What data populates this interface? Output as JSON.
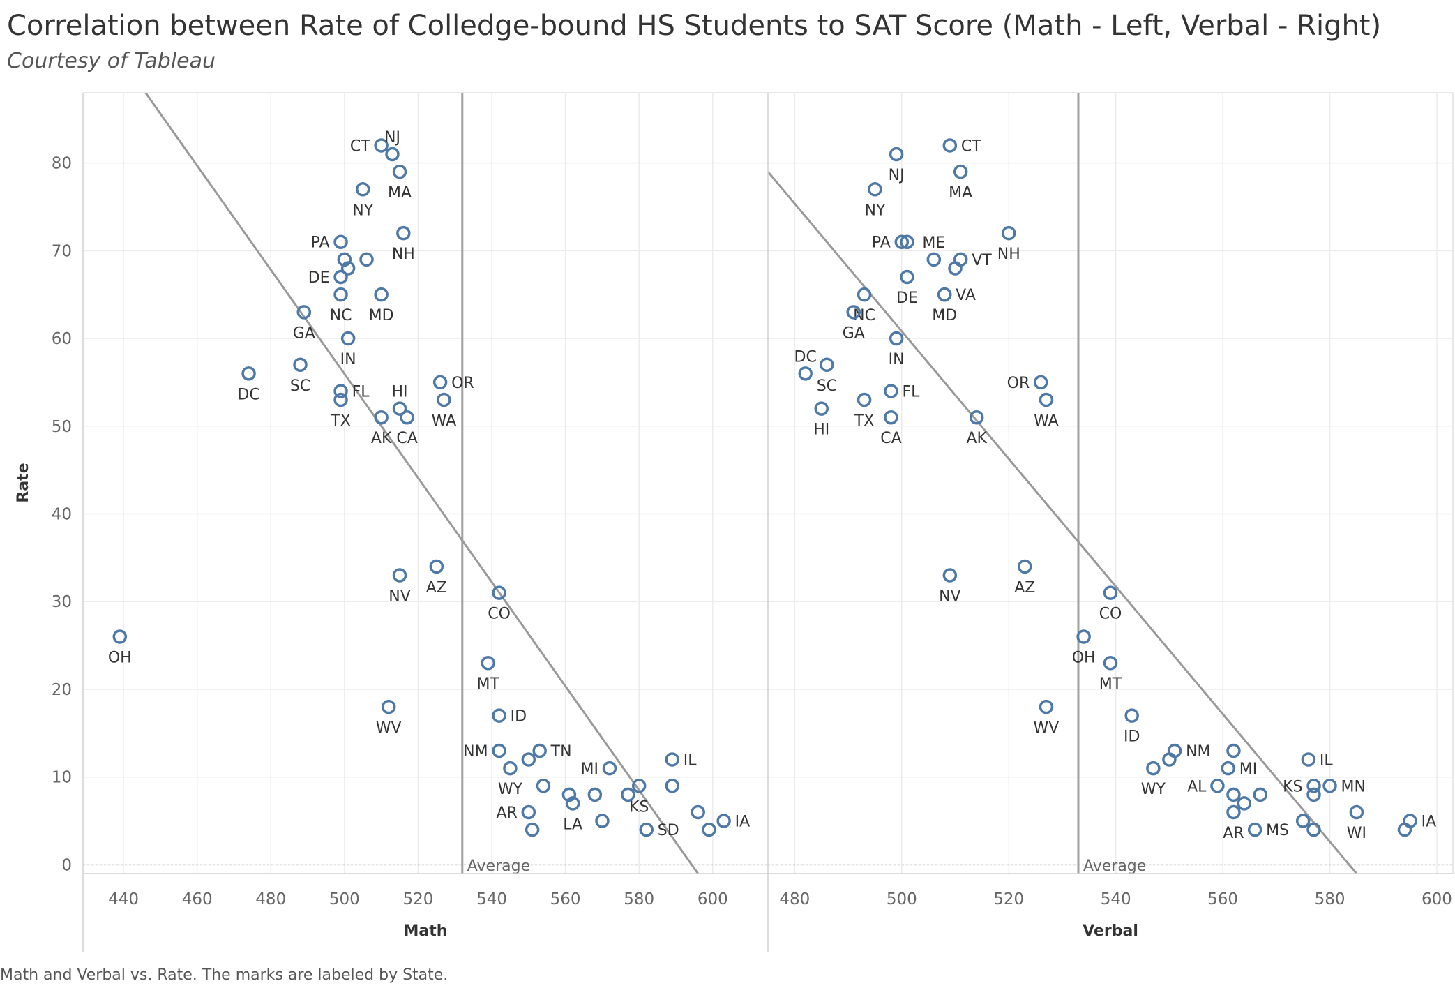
{
  "title": "Correlation between Rate of Colledge-bound HS Students to SAT Score (Math - Left, Verbal - Right)",
  "subtitle": "Courtesy of Tableau",
  "caption": "Math and Verbal vs. Rate.  The marks are labeled by State.",
  "colors": {
    "marker": "#4e79a7",
    "trend": "#999999",
    "average": "#a0a0a0",
    "grid": "#ececec"
  },
  "chart_data": [
    {
      "type": "scatter",
      "xlabel": "Math",
      "ylabel": "Rate",
      "xlim": [
        429,
        615
      ],
      "ylim": [
        -1,
        88
      ],
      "xticks": [
        440,
        460,
        480,
        500,
        520,
        540,
        560,
        580,
        600
      ],
      "yticks": [
        0,
        10,
        20,
        30,
        40,
        50,
        60,
        70,
        80
      ],
      "average_x": 532,
      "average_label": "Average",
      "trend_line": [
        [
          446,
          88
        ],
        [
          596,
          -1
        ]
      ],
      "points": [
        {
          "x": 510,
          "y": 82,
          "label": "CT",
          "pos": "left"
        },
        {
          "x": 513,
          "y": 81,
          "label": "NJ",
          "pos": "above"
        },
        {
          "x": 515,
          "y": 79,
          "label": "MA",
          "pos": "below"
        },
        {
          "x": 505,
          "y": 77,
          "label": "NY",
          "pos": "below"
        },
        {
          "x": 516,
          "y": 72,
          "label": "NH",
          "pos": "below"
        },
        {
          "x": 499,
          "y": 71,
          "label": "PA",
          "pos": "left"
        },
        {
          "x": 500,
          "y": 69,
          "label": ""
        },
        {
          "x": 506,
          "y": 69,
          "label": ""
        },
        {
          "x": 501,
          "y": 68,
          "label": ""
        },
        {
          "x": 499,
          "y": 67,
          "label": "DE",
          "pos": "left"
        },
        {
          "x": 510,
          "y": 65,
          "label": "MD",
          "pos": "below"
        },
        {
          "x": 499,
          "y": 65,
          "label": "NC",
          "pos": "below"
        },
        {
          "x": 489,
          "y": 63,
          "label": "GA",
          "pos": "below"
        },
        {
          "x": 501,
          "y": 60,
          "label": "IN",
          "pos": "below"
        },
        {
          "x": 474,
          "y": 56,
          "label": "DC",
          "pos": "below"
        },
        {
          "x": 488,
          "y": 57,
          "label": "SC",
          "pos": "below"
        },
        {
          "x": 499,
          "y": 54,
          "label": "FL",
          "pos": "right"
        },
        {
          "x": 499,
          "y": 53,
          "label": "TX",
          "pos": "below"
        },
        {
          "x": 526,
          "y": 55,
          "label": "OR",
          "pos": "right"
        },
        {
          "x": 527,
          "y": 53,
          "label": "WA",
          "pos": "below"
        },
        {
          "x": 515,
          "y": 52,
          "label": "HI",
          "pos": "above"
        },
        {
          "x": 510,
          "y": 51,
          "label": "AK",
          "pos": "below"
        },
        {
          "x": 517,
          "y": 51,
          "label": "CA",
          "pos": "below"
        },
        {
          "x": 525,
          "y": 34,
          "label": "AZ",
          "pos": "below"
        },
        {
          "x": 515,
          "y": 33,
          "label": "NV",
          "pos": "below"
        },
        {
          "x": 542,
          "y": 31,
          "label": "CO",
          "pos": "below"
        },
        {
          "x": 439,
          "y": 26,
          "label": "OH",
          "pos": "below"
        },
        {
          "x": 539,
          "y": 23,
          "label": "MT",
          "pos": "below"
        },
        {
          "x": 512,
          "y": 18,
          "label": "WV",
          "pos": "below"
        },
        {
          "x": 542,
          "y": 17,
          "label": "ID",
          "pos": "right"
        },
        {
          "x": 542,
          "y": 13,
          "label": "NM",
          "pos": "left"
        },
        {
          "x": 553,
          "y": 13,
          "label": "TN",
          "pos": "right"
        },
        {
          "x": 550,
          "y": 12,
          "label": ""
        },
        {
          "x": 545,
          "y": 11,
          "label": "WY",
          "pos": "below"
        },
        {
          "x": 572,
          "y": 11,
          "label": "MI",
          "pos": "left"
        },
        {
          "x": 589,
          "y": 12,
          "label": "IL",
          "pos": "right"
        },
        {
          "x": 554,
          "y": 9,
          "label": ""
        },
        {
          "x": 580,
          "y": 9,
          "label": "KS",
          "pos": "below"
        },
        {
          "x": 589,
          "y": 9,
          "label": ""
        },
        {
          "x": 561,
          "y": 8,
          "label": ""
        },
        {
          "x": 568,
          "y": 8,
          "label": ""
        },
        {
          "x": 577,
          "y": 8,
          "label": ""
        },
        {
          "x": 562,
          "y": 7,
          "label": "LA",
          "pos": "below"
        },
        {
          "x": 550,
          "y": 6,
          "label": "AR",
          "pos": "left"
        },
        {
          "x": 596,
          "y": 6,
          "label": ""
        },
        {
          "x": 570,
          "y": 5,
          "label": ""
        },
        {
          "x": 603,
          "y": 5,
          "label": "IA",
          "pos": "right"
        },
        {
          "x": 551,
          "y": 4,
          "label": ""
        },
        {
          "x": 582,
          "y": 4,
          "label": "SD",
          "pos": "right"
        },
        {
          "x": 599,
          "y": 4,
          "label": ""
        }
      ]
    },
    {
      "type": "scatter",
      "xlabel": "Verbal",
      "ylabel": "Rate",
      "xlim": [
        475,
        603
      ],
      "ylim": [
        -1,
        88
      ],
      "xticks": [
        480,
        500,
        520,
        540,
        560,
        580,
        600
      ],
      "yticks": [
        0,
        10,
        20,
        30,
        40,
        50,
        60,
        70,
        80
      ],
      "average_x": 533,
      "average_label": "Average",
      "trend_line": [
        [
          475,
          79
        ],
        [
          585,
          -1
        ]
      ],
      "points": [
        {
          "x": 509,
          "y": 82,
          "label": "CT",
          "pos": "right"
        },
        {
          "x": 499,
          "y": 81,
          "label": "NJ",
          "pos": "below"
        },
        {
          "x": 511,
          "y": 79,
          "label": "MA",
          "pos": "below"
        },
        {
          "x": 495,
          "y": 77,
          "label": "NY",
          "pos": "below"
        },
        {
          "x": 520,
          "y": 72,
          "label": "NH",
          "pos": "below"
        },
        {
          "x": 500,
          "y": 71,
          "label": "PA",
          "pos": "left"
        },
        {
          "x": 501,
          "y": 71,
          "label": ""
        },
        {
          "x": 506,
          "y": 69,
          "label": "ME",
          "pos": "above"
        },
        {
          "x": 511,
          "y": 69,
          "label": "VT",
          "pos": "right"
        },
        {
          "x": 510,
          "y": 68,
          "label": ""
        },
        {
          "x": 501,
          "y": 67,
          "label": "DE",
          "pos": "below"
        },
        {
          "x": 508,
          "y": 65,
          "label": "VA",
          "pos": "right"
        },
        {
          "x": 508,
          "y": 65,
          "label": "MD",
          "pos": "below"
        },
        {
          "x": 493,
          "y": 65,
          "label": "NC",
          "pos": "below"
        },
        {
          "x": 491,
          "y": 63,
          "label": "GA",
          "pos": "below"
        },
        {
          "x": 499,
          "y": 60,
          "label": "IN",
          "pos": "below"
        },
        {
          "x": 482,
          "y": 56,
          "label": "DC",
          "pos": "above"
        },
        {
          "x": 486,
          "y": 57,
          "label": "SC",
          "pos": "below"
        },
        {
          "x": 498,
          "y": 54,
          "label": "FL",
          "pos": "right"
        },
        {
          "x": 493,
          "y": 53,
          "label": "TX",
          "pos": "below"
        },
        {
          "x": 485,
          "y": 52,
          "label": "HI",
          "pos": "below"
        },
        {
          "x": 498,
          "y": 51,
          "label": "CA",
          "pos": "below"
        },
        {
          "x": 514,
          "y": 51,
          "label": "AK",
          "pos": "below"
        },
        {
          "x": 526,
          "y": 55,
          "label": "OR",
          "pos": "left"
        },
        {
          "x": 527,
          "y": 53,
          "label": "WA",
          "pos": "below"
        },
        {
          "x": 523,
          "y": 34,
          "label": "AZ",
          "pos": "below"
        },
        {
          "x": 509,
          "y": 33,
          "label": "NV",
          "pos": "below"
        },
        {
          "x": 539,
          "y": 31,
          "label": "CO",
          "pos": "below"
        },
        {
          "x": 534,
          "y": 26,
          "label": "OH",
          "pos": "below"
        },
        {
          "x": 539,
          "y": 23,
          "label": "MT",
          "pos": "below"
        },
        {
          "x": 527,
          "y": 18,
          "label": "WV",
          "pos": "below"
        },
        {
          "x": 543,
          "y": 17,
          "label": "ID",
          "pos": "below"
        },
        {
          "x": 551,
          "y": 13,
          "label": "NM",
          "pos": "right"
        },
        {
          "x": 550,
          "y": 12,
          "label": ""
        },
        {
          "x": 547,
          "y": 11,
          "label": "WY",
          "pos": "below"
        },
        {
          "x": 562,
          "y": 13,
          "label": ""
        },
        {
          "x": 561,
          "y": 11,
          "label": "MI",
          "pos": "right"
        },
        {
          "x": 576,
          "y": 12,
          "label": "IL",
          "pos": "right"
        },
        {
          "x": 559,
          "y": 9,
          "label": "AL",
          "pos": "left"
        },
        {
          "x": 577,
          "y": 9,
          "label": "KS",
          "pos": "left"
        },
        {
          "x": 580,
          "y": 9,
          "label": "MN",
          "pos": "right"
        },
        {
          "x": 562,
          "y": 8,
          "label": ""
        },
        {
          "x": 567,
          "y": 8,
          "label": ""
        },
        {
          "x": 577,
          "y": 8,
          "label": ""
        },
        {
          "x": 564,
          "y": 7,
          "label": ""
        },
        {
          "x": 562,
          "y": 6,
          "label": "AR",
          "pos": "below"
        },
        {
          "x": 585,
          "y": 6,
          "label": "WI",
          "pos": "below"
        },
        {
          "x": 575,
          "y": 5,
          "label": ""
        },
        {
          "x": 595,
          "y": 5,
          "label": "IA",
          "pos": "right"
        },
        {
          "x": 566,
          "y": 4,
          "label": "MS",
          "pos": "right"
        },
        {
          "x": 577,
          "y": 4,
          "label": ""
        },
        {
          "x": 594,
          "y": 4,
          "label": ""
        }
      ]
    }
  ]
}
